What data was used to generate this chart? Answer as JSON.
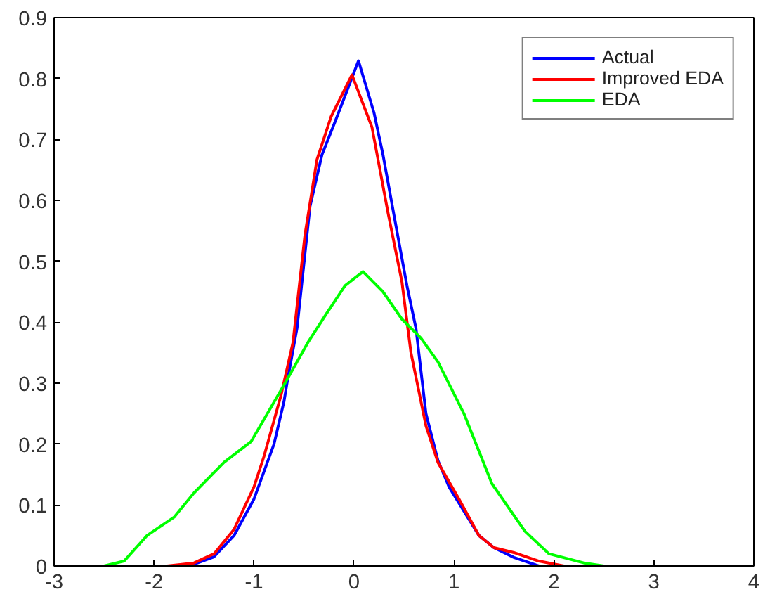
{
  "chart_data": {
    "type": "line",
    "xlim": [
      -3,
      4
    ],
    "ylim": [
      0,
      0.9
    ],
    "xticks": [
      -3,
      -2,
      -1,
      0,
      1,
      2,
      3,
      4
    ],
    "yticks": [
      0,
      0.1,
      0.2,
      0.3,
      0.4,
      0.5,
      0.6,
      0.7,
      0.8,
      0.9
    ],
    "grid": false,
    "legend": "top right",
    "marker": "none",
    "line_style": "solid",
    "series": [
      {
        "name": "Actual",
        "color": "#0000ff",
        "x": [
          -1.65,
          -1.4,
          -1.2,
          -1.0,
          -0.9,
          -0.8,
          -0.7,
          -0.66,
          -0.57,
          -0.44,
          -0.32,
          -0.18,
          0.045,
          0.2,
          0.29,
          0.41,
          0.53,
          0.62,
          0.72,
          0.84,
          0.95,
          1.25,
          1.4,
          1.6,
          1.85,
          1.95
        ],
        "values": [
          0,
          0.015,
          0.05,
          0.11,
          0.155,
          0.2,
          0.27,
          0.31,
          0.39,
          0.59,
          0.675,
          0.733,
          0.829,
          0.744,
          0.675,
          0.567,
          0.46,
          0.39,
          0.25,
          0.173,
          0.13,
          0.05,
          0.03,
          0.014,
          0,
          0
        ]
      },
      {
        "name": "Improved EDA",
        "color": "#ff0000",
        "x": [
          -1.87,
          -1.6,
          -1.4,
          -1.2,
          -1.0,
          -0.9,
          -0.73,
          -0.61,
          -0.49,
          -0.37,
          -0.23,
          -0.02,
          0.18,
          0.34,
          0.48,
          0.57,
          0.72,
          0.84,
          1.05,
          1.25,
          1.4,
          1.6,
          1.85,
          2.1
        ],
        "values": [
          0,
          0.005,
          0.02,
          0.06,
          0.13,
          0.18,
          0.28,
          0.367,
          0.544,
          0.667,
          0.737,
          0.806,
          0.72,
          0.58,
          0.466,
          0.35,
          0.23,
          0.17,
          0.11,
          0.05,
          0.03,
          0.022,
          0.008,
          0
        ]
      },
      {
        "name": "EDA",
        "color": "#00ff00",
        "x": [
          -2.81,
          -2.5,
          -2.3,
          -2.07,
          -1.8,
          -1.6,
          -1.3,
          -1.03,
          -0.7,
          -0.46,
          -0.28,
          -0.09,
          0.09,
          0.29,
          0.48,
          0.67,
          0.84,
          1.1,
          1.38,
          1.71,
          1.95,
          2.3,
          2.5,
          3.2
        ],
        "values": [
          0,
          0,
          0.008,
          0.05,
          0.08,
          0.12,
          0.17,
          0.204,
          0.297,
          0.367,
          0.413,
          0.46,
          0.483,
          0.45,
          0.405,
          0.374,
          0.335,
          0.25,
          0.135,
          0.057,
          0.02,
          0.005,
          0,
          0
        ]
      }
    ]
  }
}
